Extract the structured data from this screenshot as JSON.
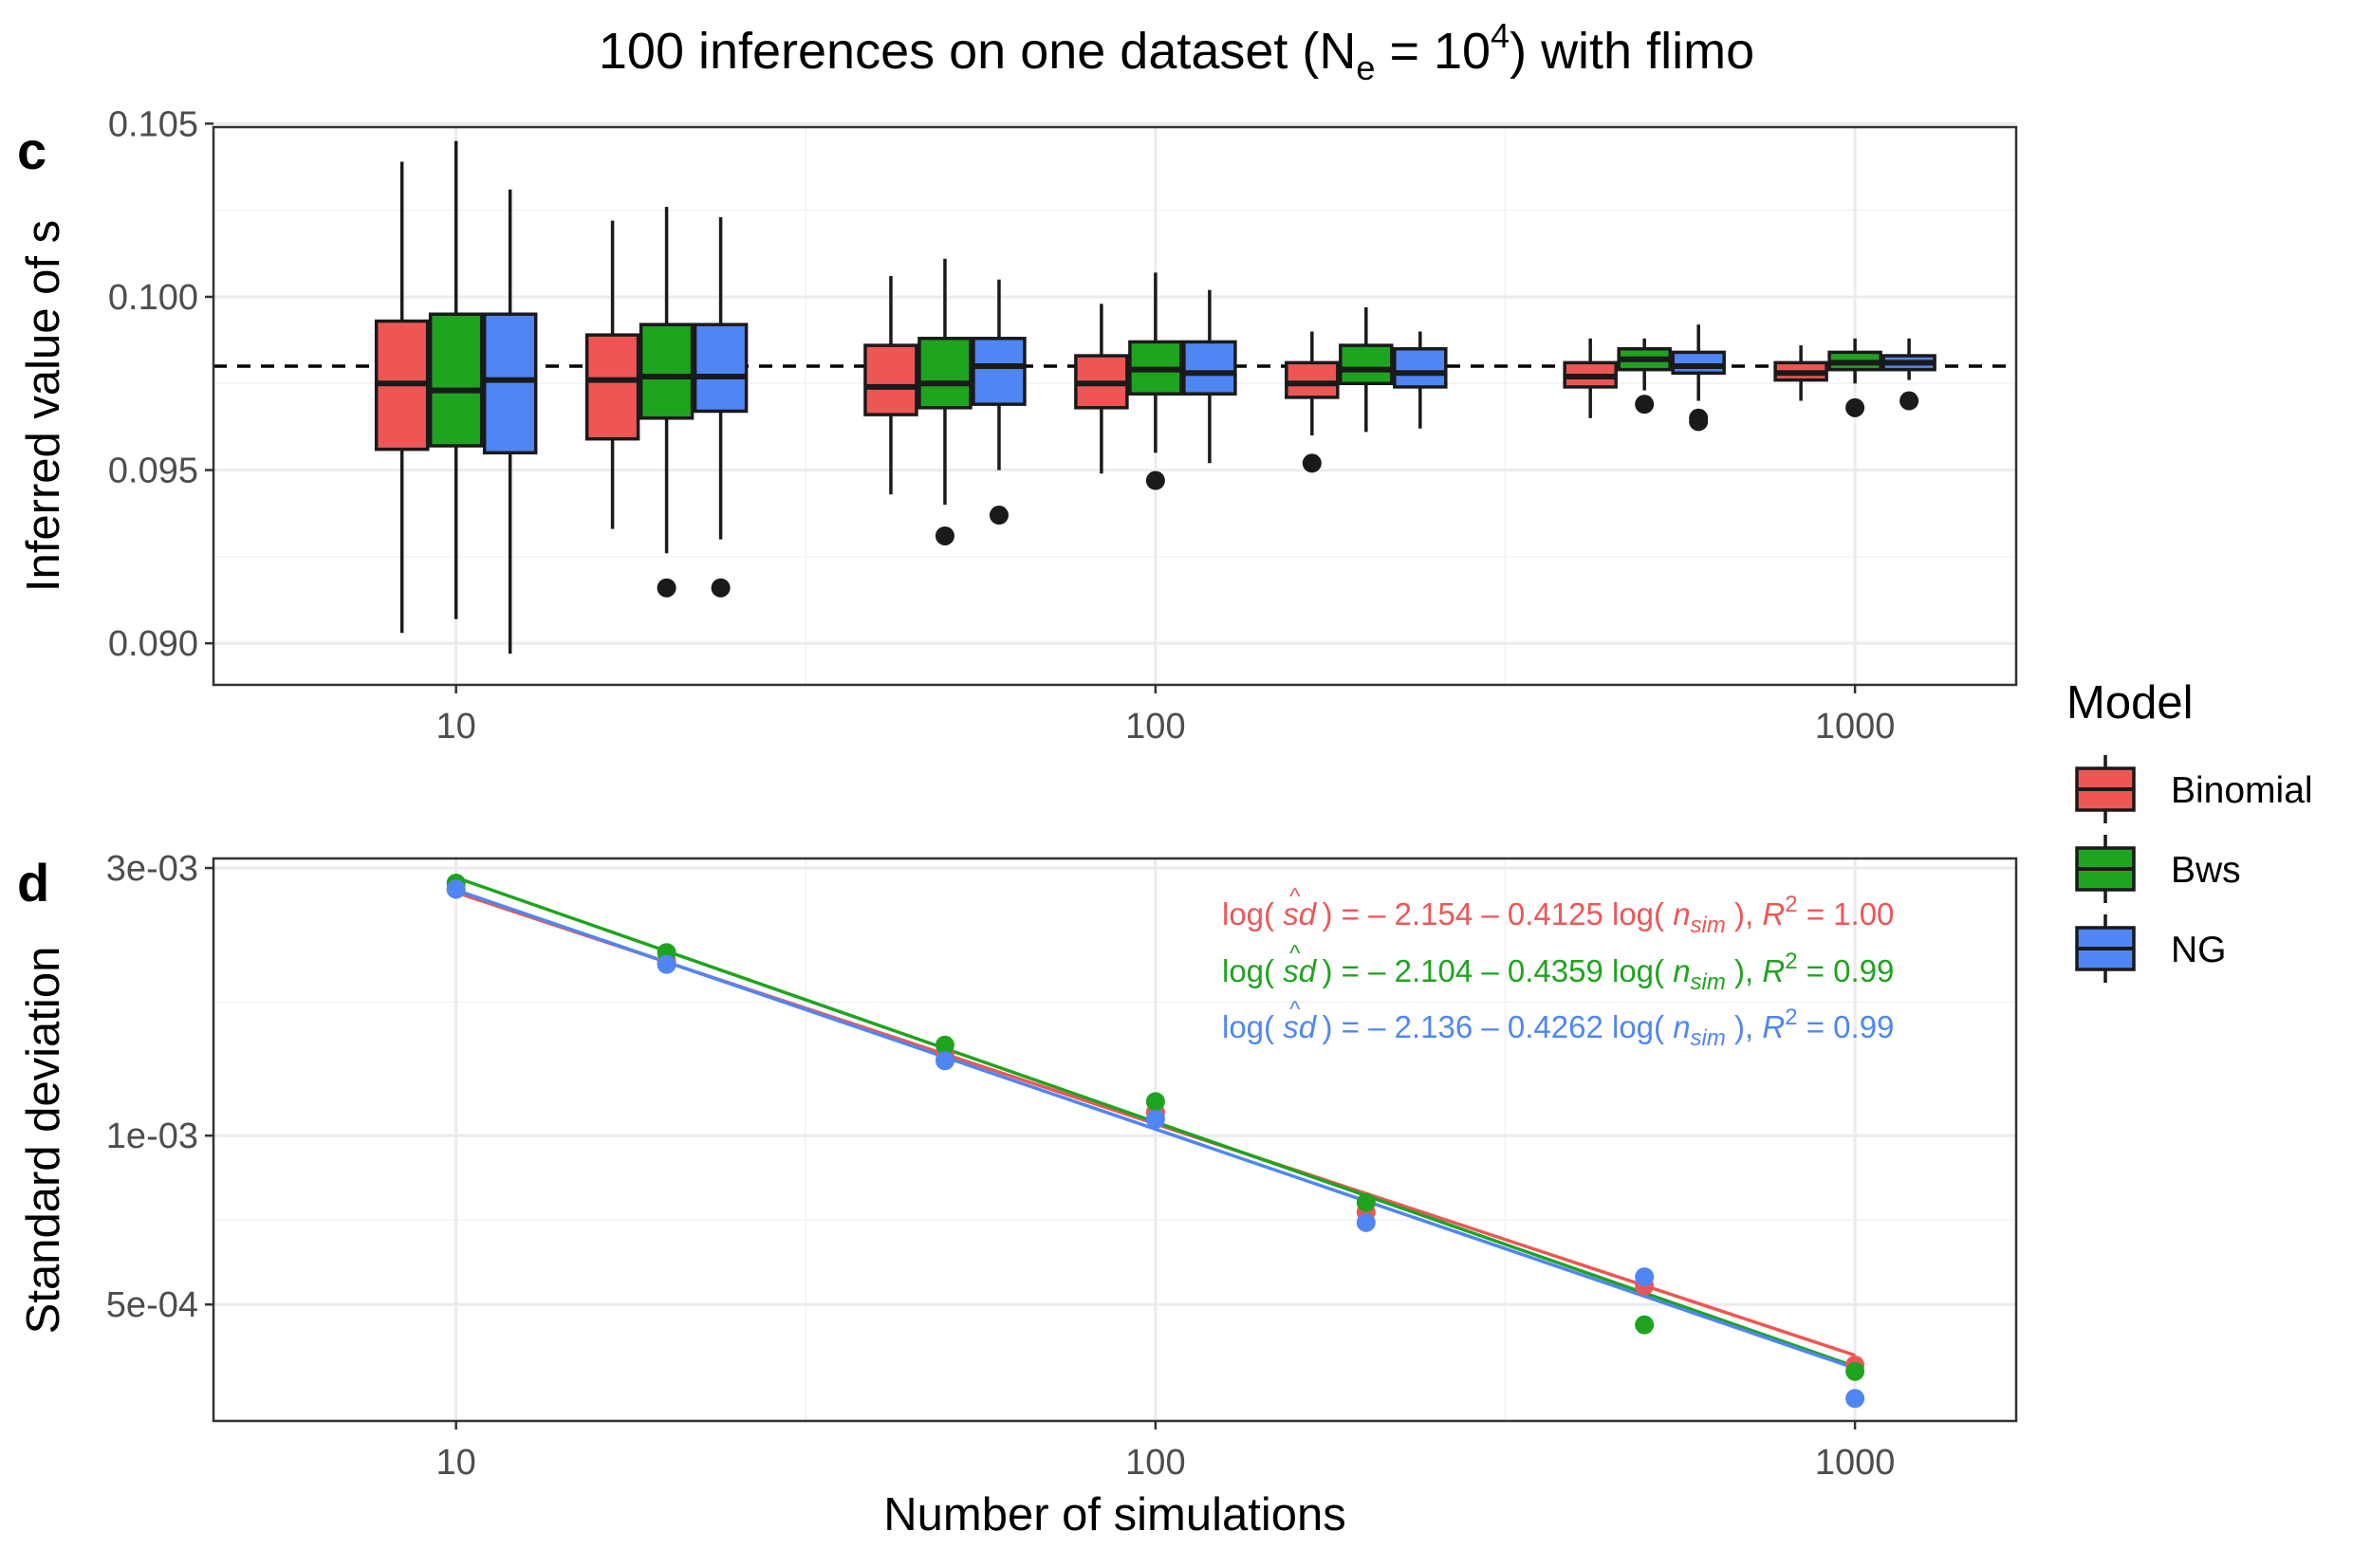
{
  "title_parts": [
    "100 inferences on one dataset (N",
    "e",
    " = 10",
    "4",
    ") with flimo"
  ],
  "legend": {
    "title": "Model",
    "items": [
      {
        "label": "Binomial",
        "color": "#ee5656"
      },
      {
        "label": "Bws",
        "color": "#1ea41e"
      },
      {
        "label": "NG",
        "color": "#4f86f4"
      }
    ]
  },
  "chart_data": [
    {
      "panel": "c",
      "type": "box",
      "xscale": "log",
      "xlabel": "",
      "ylabel": "Inferred value of s",
      "xlim": [
        4.5,
        1700
      ],
      "ylim": [
        0.0888,
        0.1049
      ],
      "xticks": [
        10,
        100,
        1000
      ],
      "xtick_labels": [
        "10",
        "100",
        "1000"
      ],
      "yticks": [
        0.09,
        0.095,
        0.1,
        0.105
      ],
      "ytick_labels": [
        "0.090",
        "0.095",
        "0.100",
        "0.105"
      ],
      "reference_line": 0.098,
      "x": [
        10,
        20,
        50,
        100,
        200,
        500,
        1000
      ],
      "series": [
        {
          "name": "Binomial",
          "boxes": [
            {
              "x": 10,
              "low": 0.0903,
              "q1": 0.0956,
              "median": 0.0975,
              "q3": 0.0993,
              "high": 0.1039,
              "outliers": []
            },
            {
              "x": 20,
              "low": 0.0933,
              "q1": 0.0959,
              "median": 0.0976,
              "q3": 0.0989,
              "high": 0.1022,
              "outliers": []
            },
            {
              "x": 50,
              "low": 0.0943,
              "q1": 0.0966,
              "median": 0.0974,
              "q3": 0.0986,
              "high": 0.1006,
              "outliers": []
            },
            {
              "x": 100,
              "low": 0.0949,
              "q1": 0.0968,
              "median": 0.0975,
              "q3": 0.0983,
              "high": 0.0998,
              "outliers": []
            },
            {
              "x": 200,
              "low": 0.096,
              "q1": 0.0971,
              "median": 0.0975,
              "q3": 0.0981,
              "high": 0.099,
              "outliers": [
                0.0952
              ]
            },
            {
              "x": 500,
              "low": 0.0965,
              "q1": 0.0974,
              "median": 0.0977,
              "q3": 0.0981,
              "high": 0.0988,
              "outliers": []
            },
            {
              "x": 1000,
              "low": 0.097,
              "q1": 0.0976,
              "median": 0.0978,
              "q3": 0.0981,
              "high": 0.0986,
              "outliers": []
            }
          ]
        },
        {
          "name": "Bws",
          "boxes": [
            {
              "x": 10,
              "low": 0.0907,
              "q1": 0.0957,
              "median": 0.0973,
              "q3": 0.0995,
              "high": 0.1045,
              "outliers": []
            },
            {
              "x": 20,
              "low": 0.0926,
              "q1": 0.0965,
              "median": 0.0977,
              "q3": 0.0992,
              "high": 0.1026,
              "outliers": [
                0.0916
              ]
            },
            {
              "x": 50,
              "low": 0.094,
              "q1": 0.0968,
              "median": 0.0975,
              "q3": 0.0988,
              "high": 0.1011,
              "outliers": [
                0.0931
              ]
            },
            {
              "x": 100,
              "low": 0.0955,
              "q1": 0.0972,
              "median": 0.0979,
              "q3": 0.0987,
              "high": 0.1007,
              "outliers": [
                0.0947
              ]
            },
            {
              "x": 200,
              "low": 0.0961,
              "q1": 0.0975,
              "median": 0.0979,
              "q3": 0.0986,
              "high": 0.0997,
              "outliers": []
            },
            {
              "x": 500,
              "low": 0.0973,
              "q1": 0.0979,
              "median": 0.0982,
              "q3": 0.0985,
              "high": 0.0988,
              "outliers": [
                0.0969
              ]
            },
            {
              "x": 1000,
              "low": 0.0975,
              "q1": 0.0979,
              "median": 0.0981,
              "q3": 0.0984,
              "high": 0.0988,
              "outliers": [
                0.0968
              ]
            }
          ]
        },
        {
          "name": "NG",
          "boxes": [
            {
              "x": 10,
              "low": 0.0897,
              "q1": 0.0955,
              "median": 0.0976,
              "q3": 0.0995,
              "high": 0.1031,
              "outliers": []
            },
            {
              "x": 20,
              "low": 0.093,
              "q1": 0.0967,
              "median": 0.0977,
              "q3": 0.0992,
              "high": 0.1023,
              "outliers": [
                0.0916
              ]
            },
            {
              "x": 50,
              "low": 0.095,
              "q1": 0.0969,
              "median": 0.098,
              "q3": 0.0988,
              "high": 0.1005,
              "outliers": [
                0.0937
              ]
            },
            {
              "x": 100,
              "low": 0.0952,
              "q1": 0.0972,
              "median": 0.0978,
              "q3": 0.0987,
              "high": 0.1002,
              "outliers": []
            },
            {
              "x": 200,
              "low": 0.0962,
              "q1": 0.0974,
              "median": 0.0978,
              "q3": 0.0985,
              "high": 0.099,
              "outliers": []
            },
            {
              "x": 500,
              "low": 0.097,
              "q1": 0.0978,
              "median": 0.098,
              "q3": 0.0984,
              "high": 0.0992,
              "outliers": [
                0.0964,
                0.0965
              ]
            },
            {
              "x": 1000,
              "low": 0.0976,
              "q1": 0.0979,
              "median": 0.0981,
              "q3": 0.0983,
              "high": 0.0988,
              "outliers": [
                0.097
              ]
            }
          ]
        }
      ]
    },
    {
      "panel": "d",
      "type": "scatter",
      "xscale": "log",
      "yscale": "log",
      "xlabel": "Number of simulations",
      "ylabel": "Standard deviation",
      "xlim": [
        4.5,
        1700
      ],
      "ylim": [
        0.00031,
        0.00312
      ],
      "xticks": [
        10,
        100,
        1000
      ],
      "xtick_labels": [
        "10",
        "100",
        "1000"
      ],
      "yticks": [
        0.0005,
        0.001,
        0.003
      ],
      "ytick_labels": [
        "5e-04",
        "1e-03",
        "3e-03"
      ],
      "x": [
        10,
        20,
        50,
        100,
        200,
        500,
        1000
      ],
      "series": [
        {
          "name": "Binomial",
          "values": [
            0.00275,
            0.00205,
            0.0014,
            0.0011,
            0.00073,
            0.00054,
            0.00039
          ],
          "fit": {
            "intercept": -2.154,
            "slope": -0.4125,
            "r2": "1.00"
          }
        },
        {
          "name": "Bws",
          "values": [
            0.00282,
            0.00212,
            0.00145,
            0.00115,
            0.00076,
            0.00046,
            0.00038
          ],
          "fit": {
            "intercept": -2.104,
            "slope": -0.4359,
            "r2": "0.99"
          }
        },
        {
          "name": "NG",
          "values": [
            0.00275,
            0.00202,
            0.00136,
            0.00107,
            0.0007,
            0.00056,
            0.00034
          ],
          "fit": {
            "intercept": -2.136,
            "slope": -0.4262,
            "r2": "0.99"
          }
        }
      ],
      "equations": [
        {
          "series": "Binomial",
          "prefix": "log( ",
          "sd": "sd",
          "hat": "^",
          "mid": " ) = – 2.154 – 0.4125 log( ",
          "nvar": "n",
          "nsub": "sim",
          "close": " ), ",
          "rvar": "R",
          "rsup": "2",
          "rval": " = 1.00"
        },
        {
          "series": "Bws",
          "prefix": "log( ",
          "sd": "sd",
          "hat": "^",
          "mid": " ) = – 2.104 – 0.4359 log( ",
          "nvar": "n",
          "nsub": "sim",
          "close": " ), ",
          "rvar": "R",
          "rsup": "2",
          "rval": " = 0.99"
        },
        {
          "series": "NG",
          "prefix": "log( ",
          "sd": "sd",
          "hat": "^",
          "mid": " ) = – 2.136 – 0.4262 log( ",
          "nvar": "n",
          "nsub": "sim",
          "close": " ), ",
          "rvar": "R",
          "rsup": "2",
          "rval": " = 0.99"
        }
      ]
    }
  ]
}
